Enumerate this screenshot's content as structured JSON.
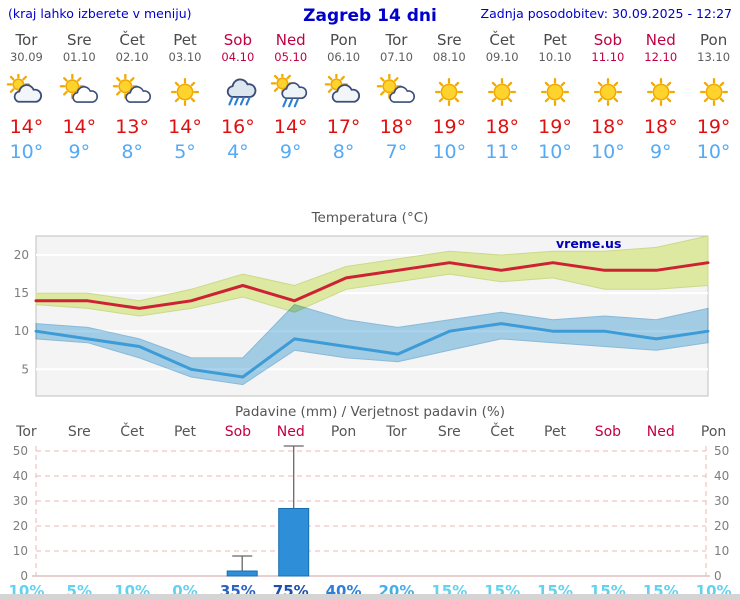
{
  "header": {
    "left_note": "(kraj lahko izberete v meniju)",
    "title": "Zagreb 14 dni",
    "updated": "Zadnja posodobitev: 30.09.2025 - 12:27"
  },
  "colors": {
    "header_blue": "#0000cc",
    "weekend_red": "#c10041",
    "tmax_red": "#dd1111",
    "tmin_blue": "#54aaf5",
    "tmax_band": "#dde8a0",
    "tmin_band": "#a9d4ef",
    "tmax_line": "#cc2233",
    "tmin_line": "#3d9bd6",
    "bar_fill": "#2e8fd8",
    "bar_stroke": "#1a6db0",
    "watermark_blue": "#0000bb"
  },
  "days": [
    {
      "name": "Tor",
      "date": "30.09",
      "weekend": false,
      "icon": "mostly-cloudy",
      "tmax": "14°",
      "tmin": "10°"
    },
    {
      "name": "Sre",
      "date": "01.10",
      "weekend": false,
      "icon": "partly-sunny",
      "tmax": "14°",
      "tmin": "9°"
    },
    {
      "name": "Čet",
      "date": "02.10",
      "weekend": false,
      "icon": "partly-sunny",
      "tmax": "13°",
      "tmin": "8°"
    },
    {
      "name": "Pet",
      "date": "03.10",
      "weekend": false,
      "icon": "sunny",
      "tmax": "14°",
      "tmin": "5°"
    },
    {
      "name": "Sob",
      "date": "04.10",
      "weekend": true,
      "icon": "rain",
      "tmax": "16°",
      "tmin": "4°"
    },
    {
      "name": "Ned",
      "date": "05.10",
      "weekend": true,
      "icon": "rain-sun",
      "tmax": "14°",
      "tmin": "9°"
    },
    {
      "name": "Pon",
      "date": "06.10",
      "weekend": false,
      "icon": "mostly-cloudy",
      "tmax": "17°",
      "tmin": "8°"
    },
    {
      "name": "Tor",
      "date": "07.10",
      "weekend": false,
      "icon": "partly-sunny",
      "tmax": "18°",
      "tmin": "7°"
    },
    {
      "name": "Sre",
      "date": "08.10",
      "weekend": false,
      "icon": "sunny",
      "tmax": "19°",
      "tmin": "10°"
    },
    {
      "name": "Čet",
      "date": "09.10",
      "weekend": false,
      "icon": "sunny",
      "tmax": "18°",
      "tmin": "11°"
    },
    {
      "name": "Pet",
      "date": "10.10",
      "weekend": false,
      "icon": "sunny",
      "tmax": "19°",
      "tmin": "10°"
    },
    {
      "name": "Sob",
      "date": "11.10",
      "weekend": true,
      "icon": "sunny",
      "tmax": "18°",
      "tmin": "10°"
    },
    {
      "name": "Ned",
      "date": "12.10",
      "weekend": true,
      "icon": "sunny",
      "tmax": "18°",
      "tmin": "9°"
    },
    {
      "name": "Pon",
      "date": "13.10",
      "weekend": false,
      "icon": "sunny",
      "tmax": "19°",
      "tmin": "10°"
    }
  ],
  "chart_data": [
    {
      "type": "line",
      "title": "Temperatura (°C)",
      "watermark": "vreme.us",
      "x_labels": [
        "Tor",
        "Sre",
        "Čet",
        "Pet",
        "Sob",
        "Ned",
        "Pon",
        "Tor",
        "Sre",
        "Čet",
        "Pet",
        "Sob",
        "Ned",
        "Pon"
      ],
      "ylim": [
        1.5,
        22.5
      ],
      "yticks": [
        5,
        10,
        15,
        20
      ],
      "grid": true,
      "series": [
        {
          "name": "tmax",
          "values": [
            14,
            14,
            13,
            14,
            16,
            14,
            17,
            18,
            19,
            18,
            19,
            18,
            18,
            19
          ]
        },
        {
          "name": "tmax_band_upper",
          "values": [
            15,
            15,
            14,
            15.5,
            17.5,
            16,
            18.5,
            19.5,
            20.5,
            20,
            20.5,
            20.5,
            21,
            22.5
          ]
        },
        {
          "name": "tmax_band_lower",
          "values": [
            13.5,
            13,
            12,
            13,
            14.5,
            12.5,
            15.5,
            16.5,
            17.5,
            16.5,
            17,
            15.5,
            15.5,
            16
          ]
        },
        {
          "name": "tmin",
          "values": [
            10,
            9,
            8,
            5,
            4,
            9,
            8,
            7,
            10,
            11,
            10,
            10,
            9,
            10
          ]
        },
        {
          "name": "tmin_band_upper",
          "values": [
            11,
            10.5,
            9,
            6.5,
            6.5,
            13.5,
            11.5,
            10.5,
            11.5,
            12.5,
            11.5,
            12,
            11.5,
            13
          ]
        },
        {
          "name": "tmin_band_lower",
          "values": [
            9,
            8.5,
            6.5,
            4,
            3,
            7.5,
            6.5,
            6,
            7.5,
            9,
            8.5,
            8,
            7.5,
            8.5
          ]
        }
      ]
    },
    {
      "type": "bar",
      "title": "Padavine (mm) / Verjetnost padavin (%)",
      "categories": [
        "Tor",
        "Sre",
        "Čet",
        "Pet",
        "Sob",
        "Ned",
        "Pon",
        "Tor",
        "Sre",
        "Čet",
        "Pet",
        "Sob",
        "Ned",
        "Pon"
      ],
      "values_mm": [
        0,
        0,
        0,
        0,
        2,
        27,
        0,
        0,
        0,
        0,
        0,
        0,
        0,
        0
      ],
      "whisker_max_mm": [
        0,
        0,
        0,
        0,
        8,
        52,
        0,
        0,
        0,
        0,
        0,
        0,
        0,
        0
      ],
      "probabilities": [
        "10%",
        "5%",
        "10%",
        "0%",
        "35%",
        "75%",
        "40%",
        "20%",
        "15%",
        "15%",
        "15%",
        "15%",
        "15%",
        "10%"
      ],
      "prob_colors": [
        "#63d2f1",
        "#63d2f1",
        "#63d2f1",
        "#63d2f1",
        "#2b64c5",
        "#1d4fae",
        "#2f7fd6",
        "#46aee9",
        "#63d2f1",
        "#63d2f1",
        "#63d2f1",
        "#63d2f1",
        "#63d2f1",
        "#63d2f1"
      ],
      "ylim": [
        0,
        52
      ],
      "yticks": [
        0,
        10,
        20,
        30,
        40,
        50
      ]
    }
  ]
}
